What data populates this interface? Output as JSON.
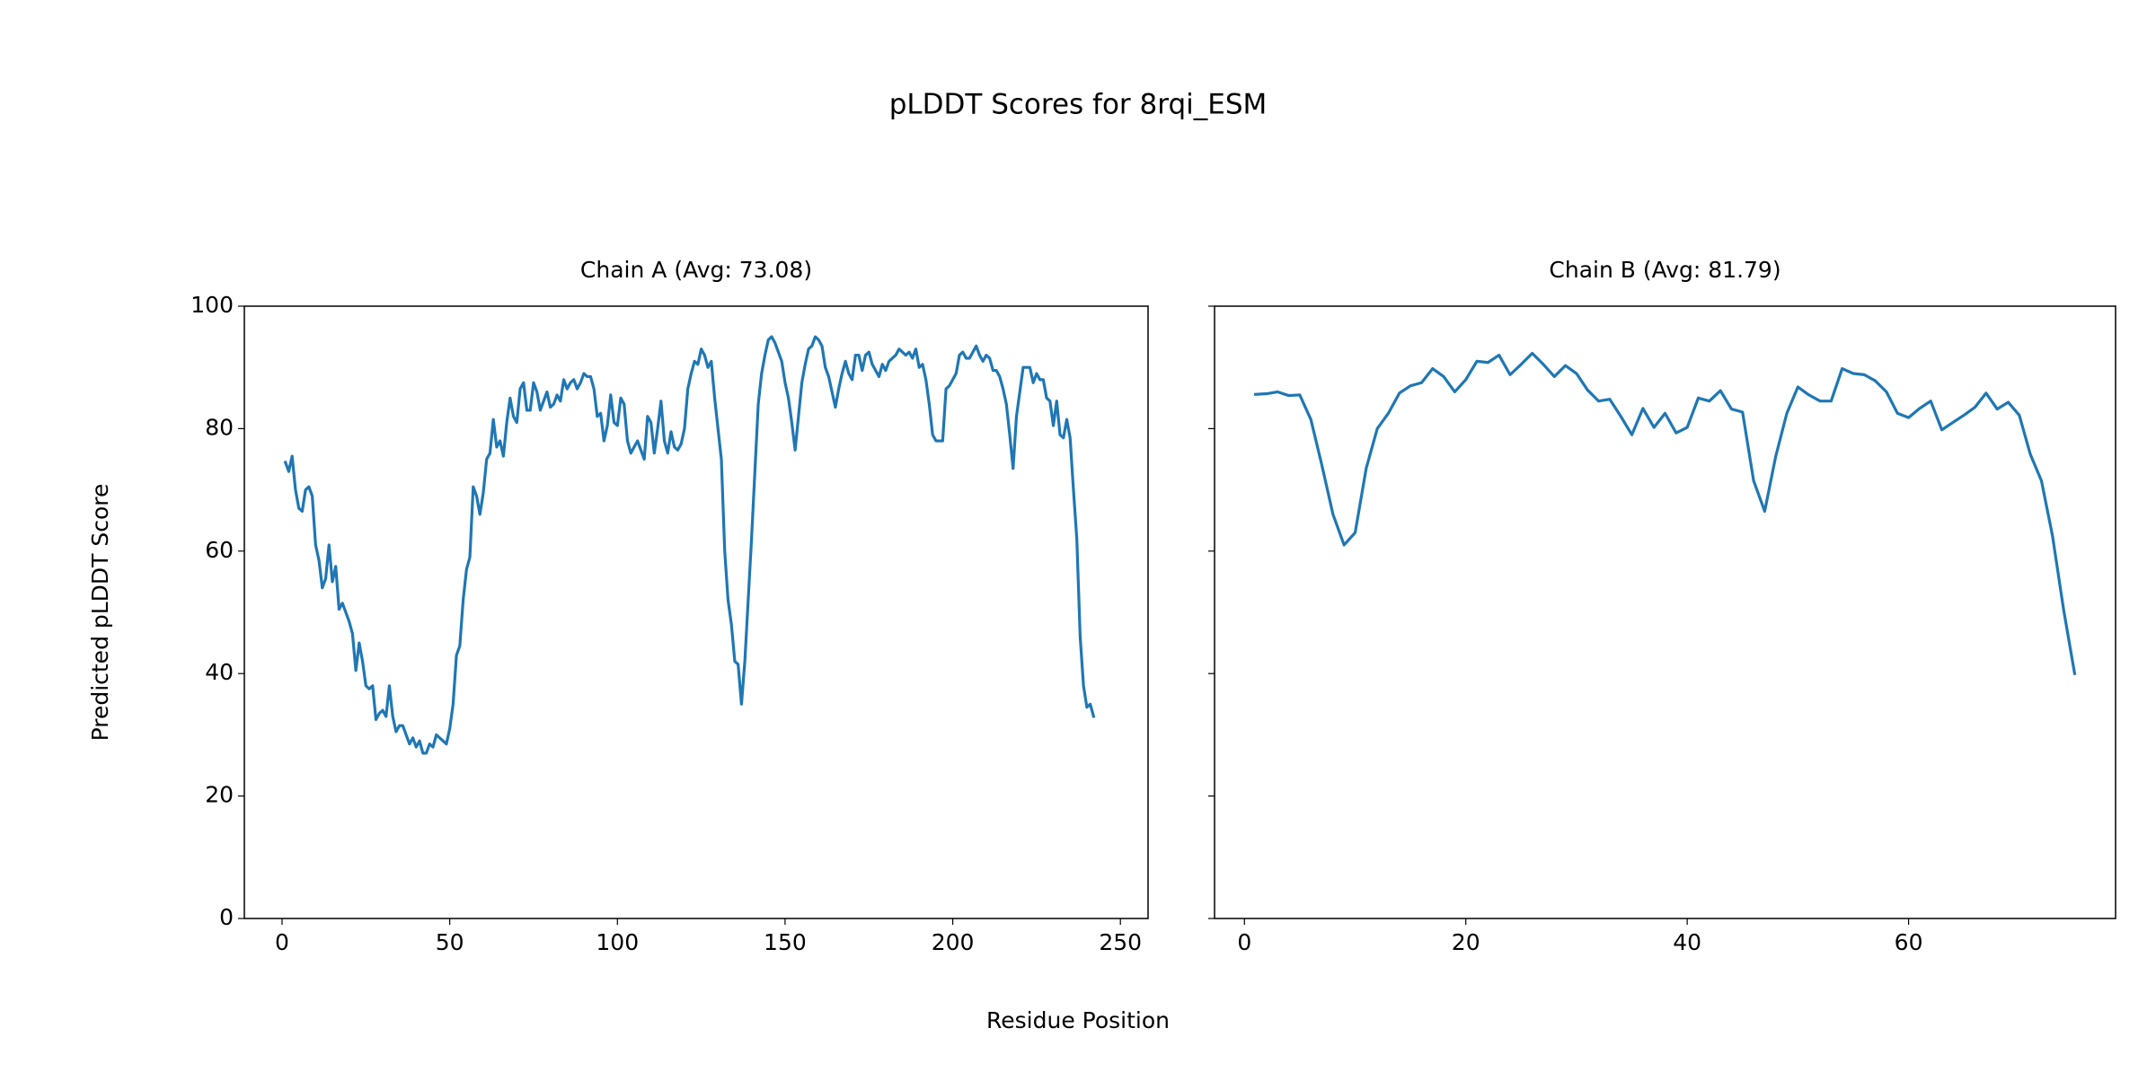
{
  "figure": {
    "title": "pLDDT Scores for 8rqi_ESM",
    "xlabel": "Residue Position",
    "ylabel": "Predicted pLDDT Score"
  },
  "chart_data": [
    {
      "type": "line",
      "title": "Chain A (Avg: 73.08)",
      "xlim": [
        -11.25,
        258.25
      ],
      "ylim": [
        0,
        100
      ],
      "xticks": [
        0,
        50,
        100,
        150,
        200,
        250
      ],
      "yticks": [
        0,
        20,
        40,
        60,
        80,
        100
      ],
      "series": [
        {
          "color": "#1f77b4",
          "x": [
            1,
            2,
            3,
            4,
            5,
            6,
            7,
            8,
            9,
            10,
            11,
            12,
            13,
            14,
            15,
            16,
            17,
            18,
            19,
            20,
            21,
            22,
            23,
            24,
            25,
            26,
            27,
            28,
            29,
            30,
            31,
            32,
            33,
            34,
            35,
            36,
            37,
            38,
            39,
            40,
            41,
            42,
            43,
            44,
            45,
            46,
            47,
            48,
            49,
            50,
            51,
            52,
            53,
            54,
            55,
            56,
            57,
            58,
            59,
            60,
            61,
            62,
            63,
            64,
            65,
            66,
            67,
            68,
            69,
            70,
            71,
            72,
            73,
            74,
            75,
            76,
            77,
            78,
            79,
            80,
            81,
            82,
            83,
            84,
            85,
            86,
            87,
            88,
            89,
            90,
            91,
            92,
            93,
            94,
            95,
            96,
            97,
            98,
            99,
            100,
            101,
            102,
            103,
            104,
            105,
            106,
            107,
            108,
            109,
            110,
            111,
            112,
            113,
            114,
            115,
            116,
            117,
            118,
            119,
            120,
            121,
            122,
            123,
            124,
            125,
            126,
            127,
            128,
            129,
            130,
            131,
            132,
            133,
            134,
            135,
            136,
            137,
            138,
            139,
            140,
            141,
            142,
            143,
            144,
            145,
            146,
            147,
            148,
            149,
            150,
            151,
            152,
            153,
            154,
            155,
            156,
            157,
            158,
            159,
            160,
            161,
            162,
            163,
            164,
            165,
            166,
            167,
            168,
            169,
            170,
            171,
            172,
            173,
            174,
            175,
            176,
            177,
            178,
            179,
            180,
            181,
            182,
            183,
            184,
            185,
            186,
            187,
            188,
            189,
            190,
            191,
            192,
            193,
            194,
            195,
            196,
            197,
            198,
            199,
            200,
            201,
            202,
            203,
            204,
            205,
            206,
            207,
            208,
            209,
            210,
            211,
            212,
            213,
            214,
            215,
            216,
            217,
            218,
            219,
            220,
            221,
            222,
            223,
            224,
            225,
            226,
            227,
            228,
            229,
            230,
            231,
            232,
            233,
            234,
            235,
            236,
            237,
            238,
            239,
            240,
            241,
            242
          ],
          "values": [
            74.5,
            73,
            75.5,
            70,
            67,
            66.5,
            70,
            70.5,
            69,
            61,
            58.5,
            54,
            55.5,
            61,
            55,
            57.5,
            50.5,
            51.5,
            50,
            48.5,
            46.5,
            40.5,
            45,
            42,
            38,
            37.5,
            38,
            32.5,
            33.5,
            34,
            33,
            38,
            33,
            30.5,
            31.5,
            31.5,
            30,
            28.5,
            29.5,
            28,
            29,
            27,
            27,
            28.5,
            28,
            30,
            29.5,
            29,
            28.5,
            31,
            35,
            43,
            44.5,
            52,
            57,
            59,
            70.5,
            69,
            66,
            69.5,
            75,
            76,
            81.5,
            77,
            78,
            75.5,
            81,
            85,
            82,
            81,
            86.5,
            87.5,
            83,
            83,
            87.5,
            86,
            83,
            84.5,
            86,
            83.5,
            84,
            85.5,
            84.5,
            88,
            86.5,
            87.5,
            88,
            86.5,
            87.5,
            89,
            88.5,
            88.5,
            86.5,
            82,
            82.5,
            78,
            80.5,
            85.5,
            81,
            80.5,
            85,
            84,
            78,
            76,
            77,
            78,
            76.5,
            75,
            82,
            81,
            76,
            80,
            84.5,
            78,
            76,
            79.5,
            77,
            76.5,
            77.5,
            80,
            86.5,
            89,
            91,
            90.5,
            93,
            92,
            90,
            91,
            85,
            80,
            75,
            60,
            52,
            48,
            42,
            41.5,
            35,
            42,
            52,
            62,
            73,
            84,
            89,
            92,
            94.5,
            95,
            94,
            92.5,
            91,
            87.5,
            85,
            81,
            76.5,
            82,
            87.5,
            90.5,
            93,
            93.5,
            95,
            94.5,
            93.5,
            90,
            88.5,
            86,
            83.5,
            86.5,
            89,
            91,
            89,
            88,
            92,
            92,
            89.5,
            92,
            92.5,
            90.5,
            89.5,
            88.5,
            90.5,
            89.5,
            91,
            91.5,
            92,
            93,
            92.5,
            92,
            92.5,
            91.5,
            93,
            90,
            90.5,
            88,
            84,
            79,
            78,
            78,
            78,
            86.5,
            87,
            88,
            89,
            92,
            92.5,
            91.5,
            91.5,
            92.5,
            93.5,
            92,
            91,
            92,
            91.5,
            89.5,
            89.5,
            88.5,
            86.5,
            84,
            79,
            73.5,
            82,
            86,
            90,
            90,
            90,
            87.5,
            89,
            88,
            88,
            85,
            84.5,
            80.5,
            84.5,
            79,
            78.5,
            81.5,
            78.5,
            70,
            62,
            46,
            38,
            34.5,
            35,
            33
          ]
        }
      ]
    },
    {
      "type": "line",
      "title": "Chain B (Avg: 81.79)",
      "xlim": [
        -2.7,
        78.7
      ],
      "ylim": [
        0,
        100
      ],
      "xticks": [
        0,
        20,
        40,
        60
      ],
      "series": [
        {
          "color": "#1f77b4",
          "x": [
            1,
            2,
            3,
            4,
            5,
            6,
            7,
            8,
            9,
            10,
            11,
            12,
            13,
            14,
            15,
            16,
            17,
            18,
            19,
            20,
            21,
            22,
            23,
            24,
            25,
            26,
            27,
            28,
            29,
            30,
            31,
            32,
            33,
            34,
            35,
            36,
            37,
            38,
            39,
            40,
            41,
            42,
            43,
            44,
            45,
            46,
            47,
            48,
            49,
            50,
            51,
            52,
            53,
            54,
            55,
            56,
            57,
            58,
            59,
            60,
            61,
            62,
            63,
            64,
            65,
            66,
            67,
            68,
            69,
            70,
            71,
            72,
            73,
            74,
            75
          ],
          "values": [
            85.6,
            85.7,
            86,
            85.4,
            85.5,
            81.5,
            74,
            66,
            61,
            63,
            73.5,
            80,
            82.5,
            85.8,
            87,
            87.5,
            89.8,
            88.5,
            86,
            88,
            91,
            90.8,
            92,
            88.8,
            90.5,
            92.3,
            90.5,
            88.5,
            90.3,
            89,
            86.3,
            84.5,
            84.8,
            82,
            79,
            83.3,
            80.2,
            82.5,
            79.3,
            80.2,
            85,
            84.5,
            86.2,
            83.2,
            82.7,
            71.5,
            66.5,
            75.5,
            82.5,
            86.8,
            85.5,
            84.5,
            84.5,
            89.8,
            89,
            88.8,
            87.8,
            86,
            82.5,
            81.8,
            83.3,
            84.5,
            79.8,
            81,
            82.2,
            83.5,
            85.8,
            83.2,
            84.3,
            82.2,
            75.8,
            71.5,
            62.5,
            50.5,
            40
          ]
        }
      ]
    }
  ]
}
